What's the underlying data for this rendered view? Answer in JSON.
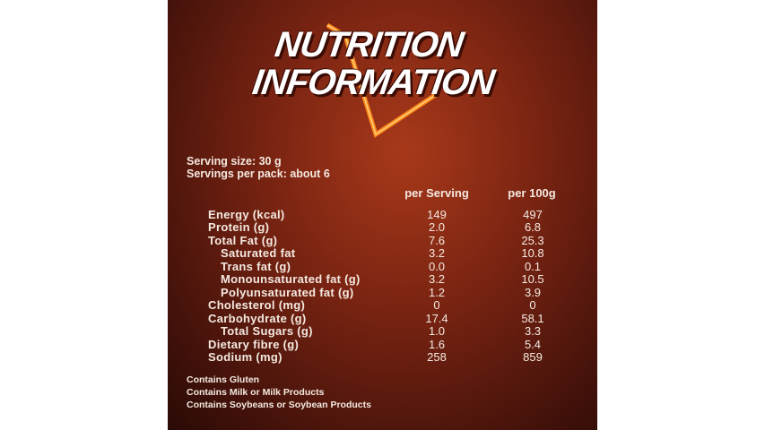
{
  "header": {
    "title_line1": "NUTRITION",
    "title_line2": "INFORMATION"
  },
  "serving": {
    "size": "Serving size: 30 g",
    "per_pack": "Servings per pack: about 6"
  },
  "table": {
    "columns": [
      "per Serving",
      "per 100g"
    ],
    "rows": [
      {
        "label": "Energy (kcal)",
        "per_serving": "149",
        "per_100g": "497",
        "level": 0
      },
      {
        "label": "Protein (g)",
        "per_serving": "2.0",
        "per_100g": "6.8",
        "level": 0
      },
      {
        "label": "Total Fat (g)",
        "per_serving": "7.6",
        "per_100g": "25.3",
        "level": 0
      },
      {
        "label": "Saturated fat",
        "per_serving": "3.2",
        "per_100g": "10.8",
        "level": 1
      },
      {
        "label": "Trans fat (g)",
        "per_serving": "0.0",
        "per_100g": "0.1",
        "level": 1
      },
      {
        "label": "Monounsaturated fat (g)",
        "per_serving": "3.2",
        "per_100g": "10.5",
        "level": 1
      },
      {
        "label": "Polyunsaturated fat (g)",
        "per_serving": "1.2",
        "per_100g": "3.9",
        "level": 1
      },
      {
        "label": "Cholesterol (mg)",
        "per_serving": "0",
        "per_100g": "0",
        "level": 0
      },
      {
        "label": "Carbohydrate (g)",
        "per_serving": "17.4",
        "per_100g": "58.1",
        "level": 0
      },
      {
        "label": "Total Sugars (g)",
        "per_serving": "1.0",
        "per_100g": "3.3",
        "level": 1
      },
      {
        "label": "Dietary fibre (g)",
        "per_serving": "1.6",
        "per_100g": "5.4",
        "level": 0
      },
      {
        "label": "Sodium (mg)",
        "per_serving": "258",
        "per_100g": "859",
        "level": 0
      }
    ]
  },
  "allergens": [
    "Contains Gluten",
    "Contains Milk or Milk Products",
    "Contains Soybeans or Soybean Products"
  ]
}
